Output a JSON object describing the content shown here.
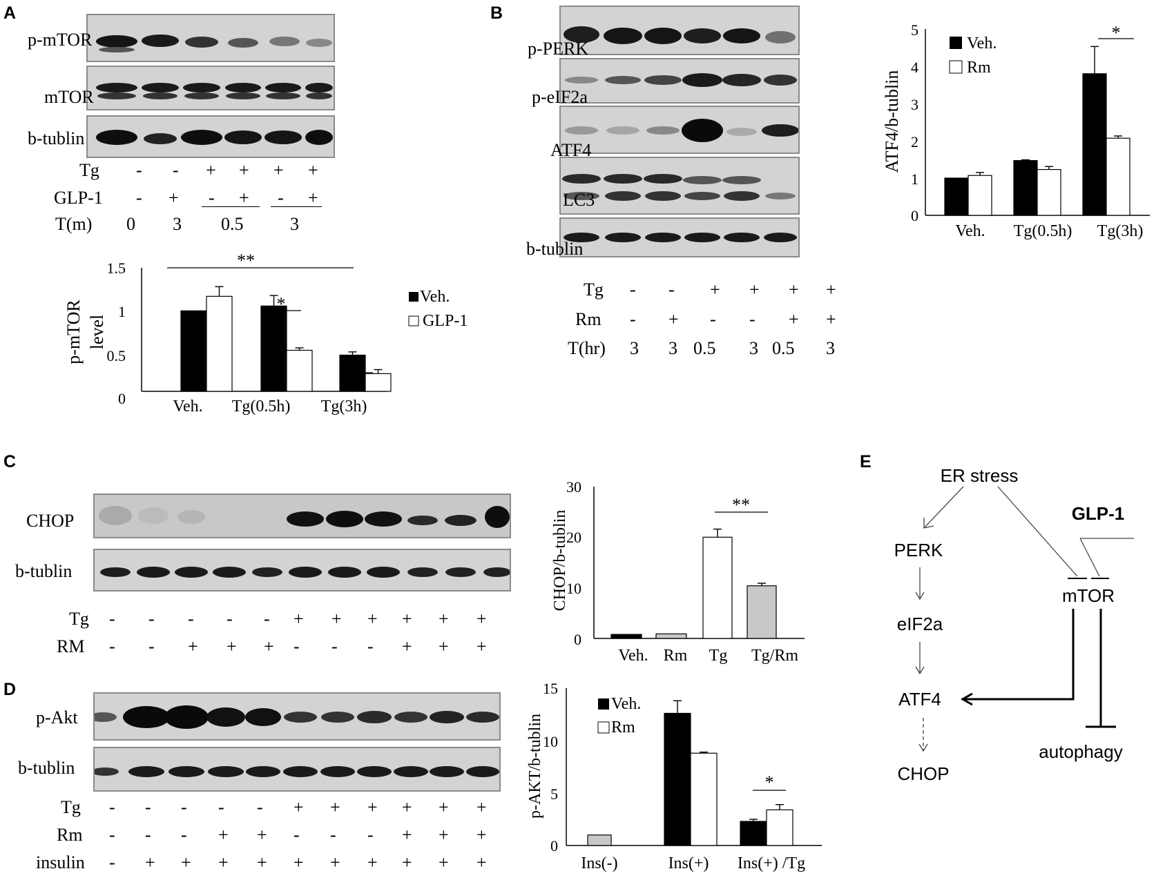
{
  "panels": {
    "A": {
      "label": "A",
      "blots": [
        "p-mTOR",
        "mTOR",
        "b-tublin"
      ],
      "conditions": [
        {
          "label": "Tg",
          "values": [
            "-",
            "-",
            "+",
            "+",
            "+",
            "+"
          ]
        },
        {
          "label": "GLP-1",
          "values": [
            "-",
            "+",
            "-",
            "+",
            "-",
            "+"
          ]
        },
        {
          "label": "T(m)",
          "values": [
            "0",
            "3",
            "0.5",
            "3"
          ]
        }
      ]
    },
    "B": {
      "label": "B",
      "blots": [
        "p-PERK",
        "p-eIF2a",
        "ATF4",
        "LC3",
        "b-tublin"
      ],
      "conditions": [
        {
          "label": "Tg",
          "values": [
            "-",
            "-",
            "+",
            "+",
            "+",
            "+"
          ]
        },
        {
          "label": "Rm",
          "values": [
            "-",
            "+",
            "-",
            "-",
            "+",
            "+"
          ]
        },
        {
          "label": "T(hr)",
          "values": [
            "3",
            "3",
            "0.5",
            "3",
            "0.5",
            "3"
          ]
        }
      ]
    },
    "C": {
      "label": "C",
      "blots": [
        "CHOP",
        "b-tublin"
      ],
      "conditions": [
        {
          "label": "Tg",
          "values": [
            "-",
            "-",
            "-",
            "-",
            "-",
            "+",
            "+",
            "+",
            "+",
            "+",
            "+"
          ]
        },
        {
          "label": "RM",
          "values": [
            "-",
            "-",
            "+",
            "+",
            "+",
            "-",
            "-",
            "-",
            "+",
            "+",
            "+"
          ]
        }
      ]
    },
    "D": {
      "label": "D",
      "blots": [
        "p-Akt",
        "b-tublin"
      ],
      "conditions": [
        {
          "label": "Tg",
          "values": [
            "-",
            "-",
            "-",
            "-",
            "-",
            "+",
            "+",
            "+",
            "+",
            "+",
            "+"
          ]
        },
        {
          "label": "Rm",
          "values": [
            "-",
            "-",
            "-",
            "+",
            "+",
            "-",
            "-",
            "-",
            "+",
            "+",
            "+"
          ]
        },
        {
          "label": "insulin",
          "values": [
            "-",
            "+",
            "+",
            "+",
            "+",
            "+",
            "+",
            "+",
            "+",
            "+",
            "+"
          ]
        }
      ]
    },
    "E": {
      "label": "E",
      "nodes": {
        "er_stress": "ER stress",
        "glp1": "GLP-1",
        "perk": "PERK",
        "eif2a": "eIF2a",
        "atf4": "ATF4",
        "chop": "CHOP",
        "mtor": "mTOR",
        "autophagy": "autophagy"
      }
    }
  },
  "chart_data": [
    {
      "id": "A",
      "type": "bar",
      "categories": [
        "Veh.",
        "Tg(0.5h)",
        "Tg(3h)"
      ],
      "series": [
        {
          "name": "Veh.",
          "color": "#000000",
          "values": [
            1.0,
            1.06,
            0.45
          ],
          "errors": [
            0,
            0.13,
            0.04
          ]
        },
        {
          "name": "GLP-1",
          "color": "#ffffff",
          "values": [
            1.18,
            0.51,
            0.22
          ],
          "errors": [
            0.12,
            0.03,
            0.05
          ]
        }
      ],
      "ylabel": "p-mTOR level",
      "ylim": [
        0,
        1.5
      ],
      "yticks": [
        "0",
        "0.5",
        "1",
        "1.5"
      ],
      "legend": "right",
      "annotations": [
        "**",
        "*",
        "*"
      ]
    },
    {
      "id": "B",
      "type": "bar",
      "categories": [
        "Veh.",
        "Tg(0.5h)",
        "Tg(3h)"
      ],
      "series": [
        {
          "name": "Veh.",
          "color": "#000000",
          "values": [
            1.0,
            1.47,
            3.8
          ],
          "errors": [
            0,
            0.02,
            0.73
          ]
        },
        {
          "name": "Rm",
          "color": "#ffffff",
          "values": [
            1.07,
            1.23,
            2.07
          ],
          "errors": [
            0.08,
            0.08,
            0.06
          ]
        }
      ],
      "ylabel": "ATF4/b-tublin",
      "ylim": [
        0,
        5
      ],
      "yticks": [
        "0",
        "1",
        "2",
        "3",
        "4",
        "5"
      ],
      "legend": "top-left",
      "annotations": [
        "*"
      ]
    },
    {
      "id": "C",
      "type": "bar",
      "categories": [
        "Veh.",
        "Rm",
        "Tg",
        "Tg/Rm"
      ],
      "values": [
        0.8,
        0.9,
        20.0,
        10.4
      ],
      "errors": [
        0,
        0,
        1.6,
        0.5
      ],
      "colors": [
        "#000000",
        "#c8c8c8",
        "#ffffff",
        "#c8c8c8"
      ],
      "ylabel": "CHOP/b-tublin",
      "ylim": [
        0,
        30
      ],
      "yticks": [
        "0",
        "10",
        "20",
        "30"
      ],
      "annotations": [
        "**"
      ]
    },
    {
      "id": "D",
      "type": "bar",
      "categories": [
        "Ins(-)",
        "Ins(+)",
        "Ins(+) /Tg"
      ],
      "series": [
        {
          "name": "Veh.",
          "color": "#000000",
          "values": [
            null,
            12.6,
            2.3
          ],
          "errors": [
            0,
            1.2,
            0.2
          ]
        },
        {
          "name": "Rm",
          "color": "#ffffff",
          "values": [
            null,
            8.8,
            3.4
          ],
          "errors": [
            0,
            0.1,
            0.5
          ]
        }
      ],
      "extra_bar": {
        "category": "Ins(-)",
        "value": 1.0,
        "color": "#c8c8c8"
      },
      "ylabel": "p-AKT/b-tublin",
      "ylim": [
        0,
        15
      ],
      "yticks": [
        "0",
        "5",
        "10",
        "15"
      ],
      "legend": "top",
      "annotations": [
        "*"
      ]
    }
  ]
}
